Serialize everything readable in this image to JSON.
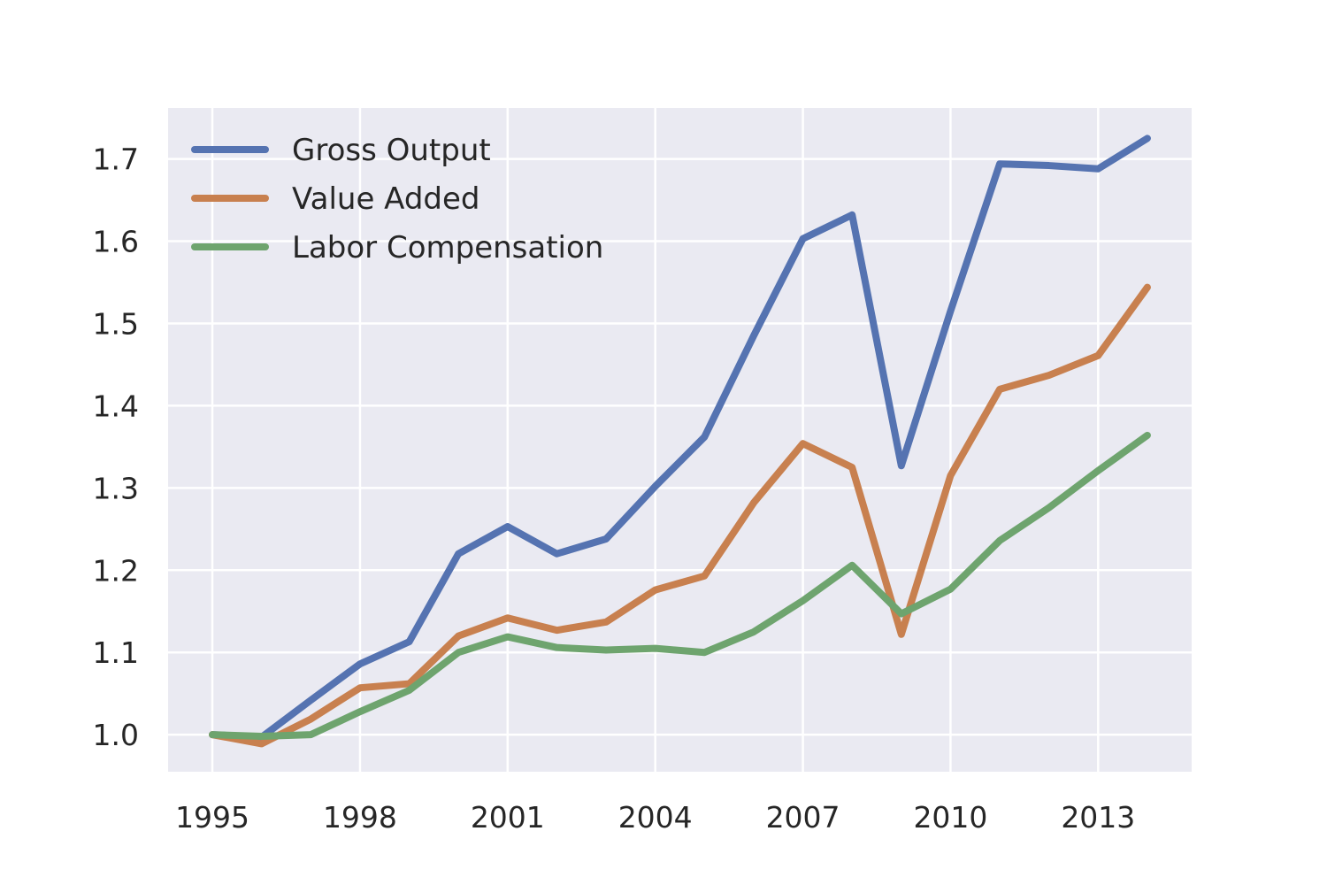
{
  "chart_data": {
    "type": "line",
    "title": "",
    "xlabel": "",
    "ylabel": "",
    "x": [
      1995,
      1996,
      1997,
      1998,
      1999,
      2000,
      2001,
      2002,
      2003,
      2004,
      2005,
      2006,
      2007,
      2008,
      2009,
      2010,
      2011,
      2012,
      2013,
      2014
    ],
    "x_ticks": [
      1995,
      1998,
      2001,
      2004,
      2007,
      2010,
      2013
    ],
    "x_tick_labels": [
      "1995",
      "1998",
      "2001",
      "2004",
      "2007",
      "2010",
      "2013"
    ],
    "y_ticks": [
      1.0,
      1.1,
      1.2,
      1.3,
      1.4,
      1.5,
      1.6,
      1.7
    ],
    "y_tick_labels": [
      "1.0",
      "1.1",
      "1.2",
      "1.3",
      "1.4",
      "1.5",
      "1.6",
      "1.7"
    ],
    "xlim": [
      1994.1,
      2014.9
    ],
    "ylim": [
      0.955,
      1.762
    ],
    "grid": true,
    "legend_position": "top-left",
    "background_color": "#EAEAF2",
    "grid_color": "#FFFFFF",
    "series": [
      {
        "name": "Gross Output",
        "color": "#5573B1",
        "values": [
          1.0,
          0.997,
          1.042,
          1.086,
          1.113,
          1.22,
          1.253,
          1.22,
          1.238,
          1.302,
          1.362,
          1.485,
          1.603,
          1.632,
          1.327,
          1.515,
          1.694,
          1.692,
          1.688,
          1.725
        ]
      },
      {
        "name": "Value Added",
        "color": "#C8804F",
        "values": [
          1.0,
          0.989,
          1.019,
          1.057,
          1.062,
          1.12,
          1.142,
          1.127,
          1.137,
          1.176,
          1.193,
          1.282,
          1.354,
          1.325,
          1.122,
          1.315,
          1.42,
          1.437,
          1.461,
          1.544
        ]
      },
      {
        "name": "Labor Compensation",
        "color": "#6EA46E",
        "values": [
          1.0,
          0.998,
          1.0,
          1.028,
          1.054,
          1.1,
          1.119,
          1.106,
          1.103,
          1.105,
          1.1,
          1.125,
          1.163,
          1.206,
          1.147,
          1.177,
          1.236,
          1.276,
          1.321,
          1.364
        ]
      }
    ]
  }
}
